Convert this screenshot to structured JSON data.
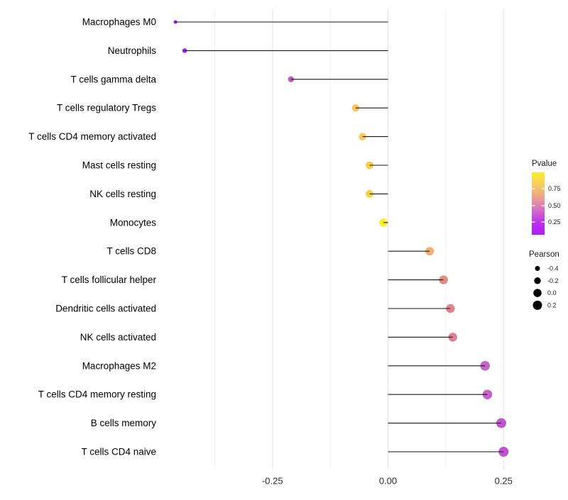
{
  "chart_data": {
    "type": "lollipop",
    "title": "",
    "xlabel": "",
    "ylabel": "",
    "x_axis": {
      "ticks": [
        -0.25,
        0.0,
        0.25
      ],
      "tick_labels": [
        "-0.25",
        "0.00",
        "0.25"
      ],
      "minor_ticks": [
        -0.375,
        -0.125,
        0.125
      ],
      "xlim": [
        -0.495,
        0.285
      ]
    },
    "baseline_x": 0.0,
    "points": [
      {
        "label": "Macrophages M0",
        "pearson": -0.46,
        "color": "#9A1DE8",
        "dot_d": 5
      },
      {
        "label": "Neutrophils",
        "pearson": -0.44,
        "color": "#9B1FE6",
        "dot_d": 6.5
      },
      {
        "label": "T cells gamma delta",
        "pearson": -0.21,
        "color": "#C05CBE",
        "dot_d": 8.5
      },
      {
        "label": "T cells regulatory  Tregs",
        "pearson": -0.07,
        "color": "#F4C75A",
        "dot_d": 10.5
      },
      {
        "label": "T cells CD4 memory activated",
        "pearson": -0.055,
        "color": "#F4CB55",
        "dot_d": 10.5
      },
      {
        "label": "Mast cells resting",
        "pearson": -0.04,
        "color": "#F2CF52",
        "dot_d": 11
      },
      {
        "label": "NK cells resting",
        "pearson": -0.04,
        "color": "#F1D24E",
        "dot_d": 11
      },
      {
        "label": "Monocytes",
        "pearson": -0.01,
        "color": "#F8EF25",
        "dot_d": 11.5
      },
      {
        "label": "T cells CD8",
        "pearson": 0.09,
        "color": "#EFB070",
        "dot_d": 12
      },
      {
        "label": "T cells follicular helper",
        "pearson": 0.12,
        "color": "#E28B84",
        "dot_d": 12.5
      },
      {
        "label": "Dendritic cells activated",
        "pearson": 0.135,
        "color": "#E0858F",
        "dot_d": 12.5
      },
      {
        "label": "NK cells activated",
        "pearson": 0.14,
        "color": "#DC8097",
        "dot_d": 12.5
      },
      {
        "label": "Macrophages M2",
        "pearson": 0.21,
        "color": "#C763C6",
        "dot_d": 13.5
      },
      {
        "label": "T cells CD4 memory resting",
        "pearson": 0.215,
        "color": "#C662C8",
        "dot_d": 13.5
      },
      {
        "label": "B cells memory",
        "pearson": 0.245,
        "color": "#C255CE",
        "dot_d": 14
      },
      {
        "label": "T cells CD4 naive",
        "pearson": 0.25,
        "color": "#C151D1",
        "dot_d": 14
      }
    ],
    "legend_position": "right",
    "grid": true
  },
  "legend": {
    "pvalue": {
      "title": "Pvalue",
      "tick_labels": [
        "0.75",
        "0.50",
        "0.25"
      ],
      "gradient_stops": [
        "#FAEE2C",
        "#F6CB62",
        "#EBA18B",
        "#D46FC8",
        "#BC32EE",
        "#AE1CF8"
      ]
    },
    "pearson": {
      "title": "Pearson",
      "entries": [
        {
          "label": "-0.4",
          "dot_d": 7
        },
        {
          "label": "-0.2",
          "dot_d": 9.5
        },
        {
          "label": "0.0",
          "dot_d": 11.5
        },
        {
          "label": "0.2",
          "dot_d": 13
        }
      ]
    }
  },
  "style": {
    "background": "#FFFFFF",
    "grid_major_color": "#E4E4E4",
    "grid_minor_color": "#F1F1F1",
    "stem_color": "#161616",
    "axis_text_color": "#2B2B2B",
    "y_label_color": "#000000",
    "legend_text_color": "#1A1A1A"
  }
}
